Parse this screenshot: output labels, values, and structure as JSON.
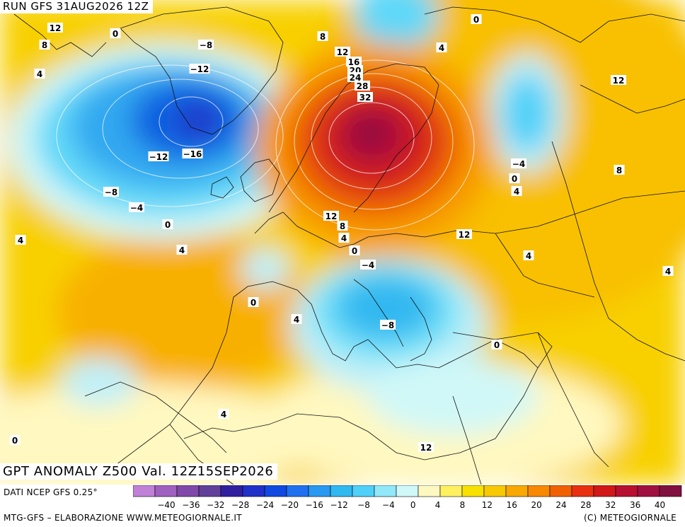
{
  "header": {
    "run": "RUN GFS 31AUG2026 12Z"
  },
  "title": "GPT ANOMALY Z500 Val. 12Z15SEP2026",
  "footer": {
    "source": "DATI NCEP GFS 0.25°",
    "credit": "MTG-GFS – ELABORAZIONE WWW.METEOGIORNALE.IT",
    "copyright": "(C) METEOGIORNALE"
  },
  "colors": {
    "strong_positive": "#a01040",
    "positive": "#f0c000",
    "neutral": "#fffac8",
    "negative": "#30c8f0",
    "strong_negative": "#1460e0"
  },
  "scale": {
    "tick_labels": [
      "−40",
      "−36",
      "−32",
      "−28",
      "−24",
      "−20",
      "−16",
      "−12",
      "−8",
      "−4",
      "0",
      "4",
      "8",
      "12",
      "16",
      "20",
      "24",
      "28",
      "32",
      "36",
      "40"
    ],
    "colors": [
      "#c080d8",
      "#a060c0",
      "#8048a8",
      "#604098",
      "#3020a0",
      "#2030c8",
      "#1048e0",
      "#2070f0",
      "#2898f0",
      "#30b8f0",
      "#50d0f8",
      "#90e8f8",
      "#d0f8f8",
      "#fff8c0",
      "#fff060",
      "#f8e000",
      "#f8c800",
      "#f8a800",
      "#f88800",
      "#f06000",
      "#e83010",
      "#d01818",
      "#b81030",
      "#a01040",
      "#801040"
    ]
  },
  "contour_labels": [
    "12",
    "0",
    "8",
    "4",
    "−8",
    "−12",
    "−16",
    "−12",
    "−8",
    "−4",
    "0",
    "4",
    "4",
    "8",
    "12",
    "16",
    "20",
    "24",
    "28",
    "32",
    "12",
    "4",
    "−4",
    "0",
    "4",
    "8",
    "12",
    "12",
    "8",
    "4",
    "0",
    "−4",
    "4",
    "4",
    "0",
    "4",
    "−8",
    "0",
    "0",
    "4",
    "0",
    "12"
  ]
}
